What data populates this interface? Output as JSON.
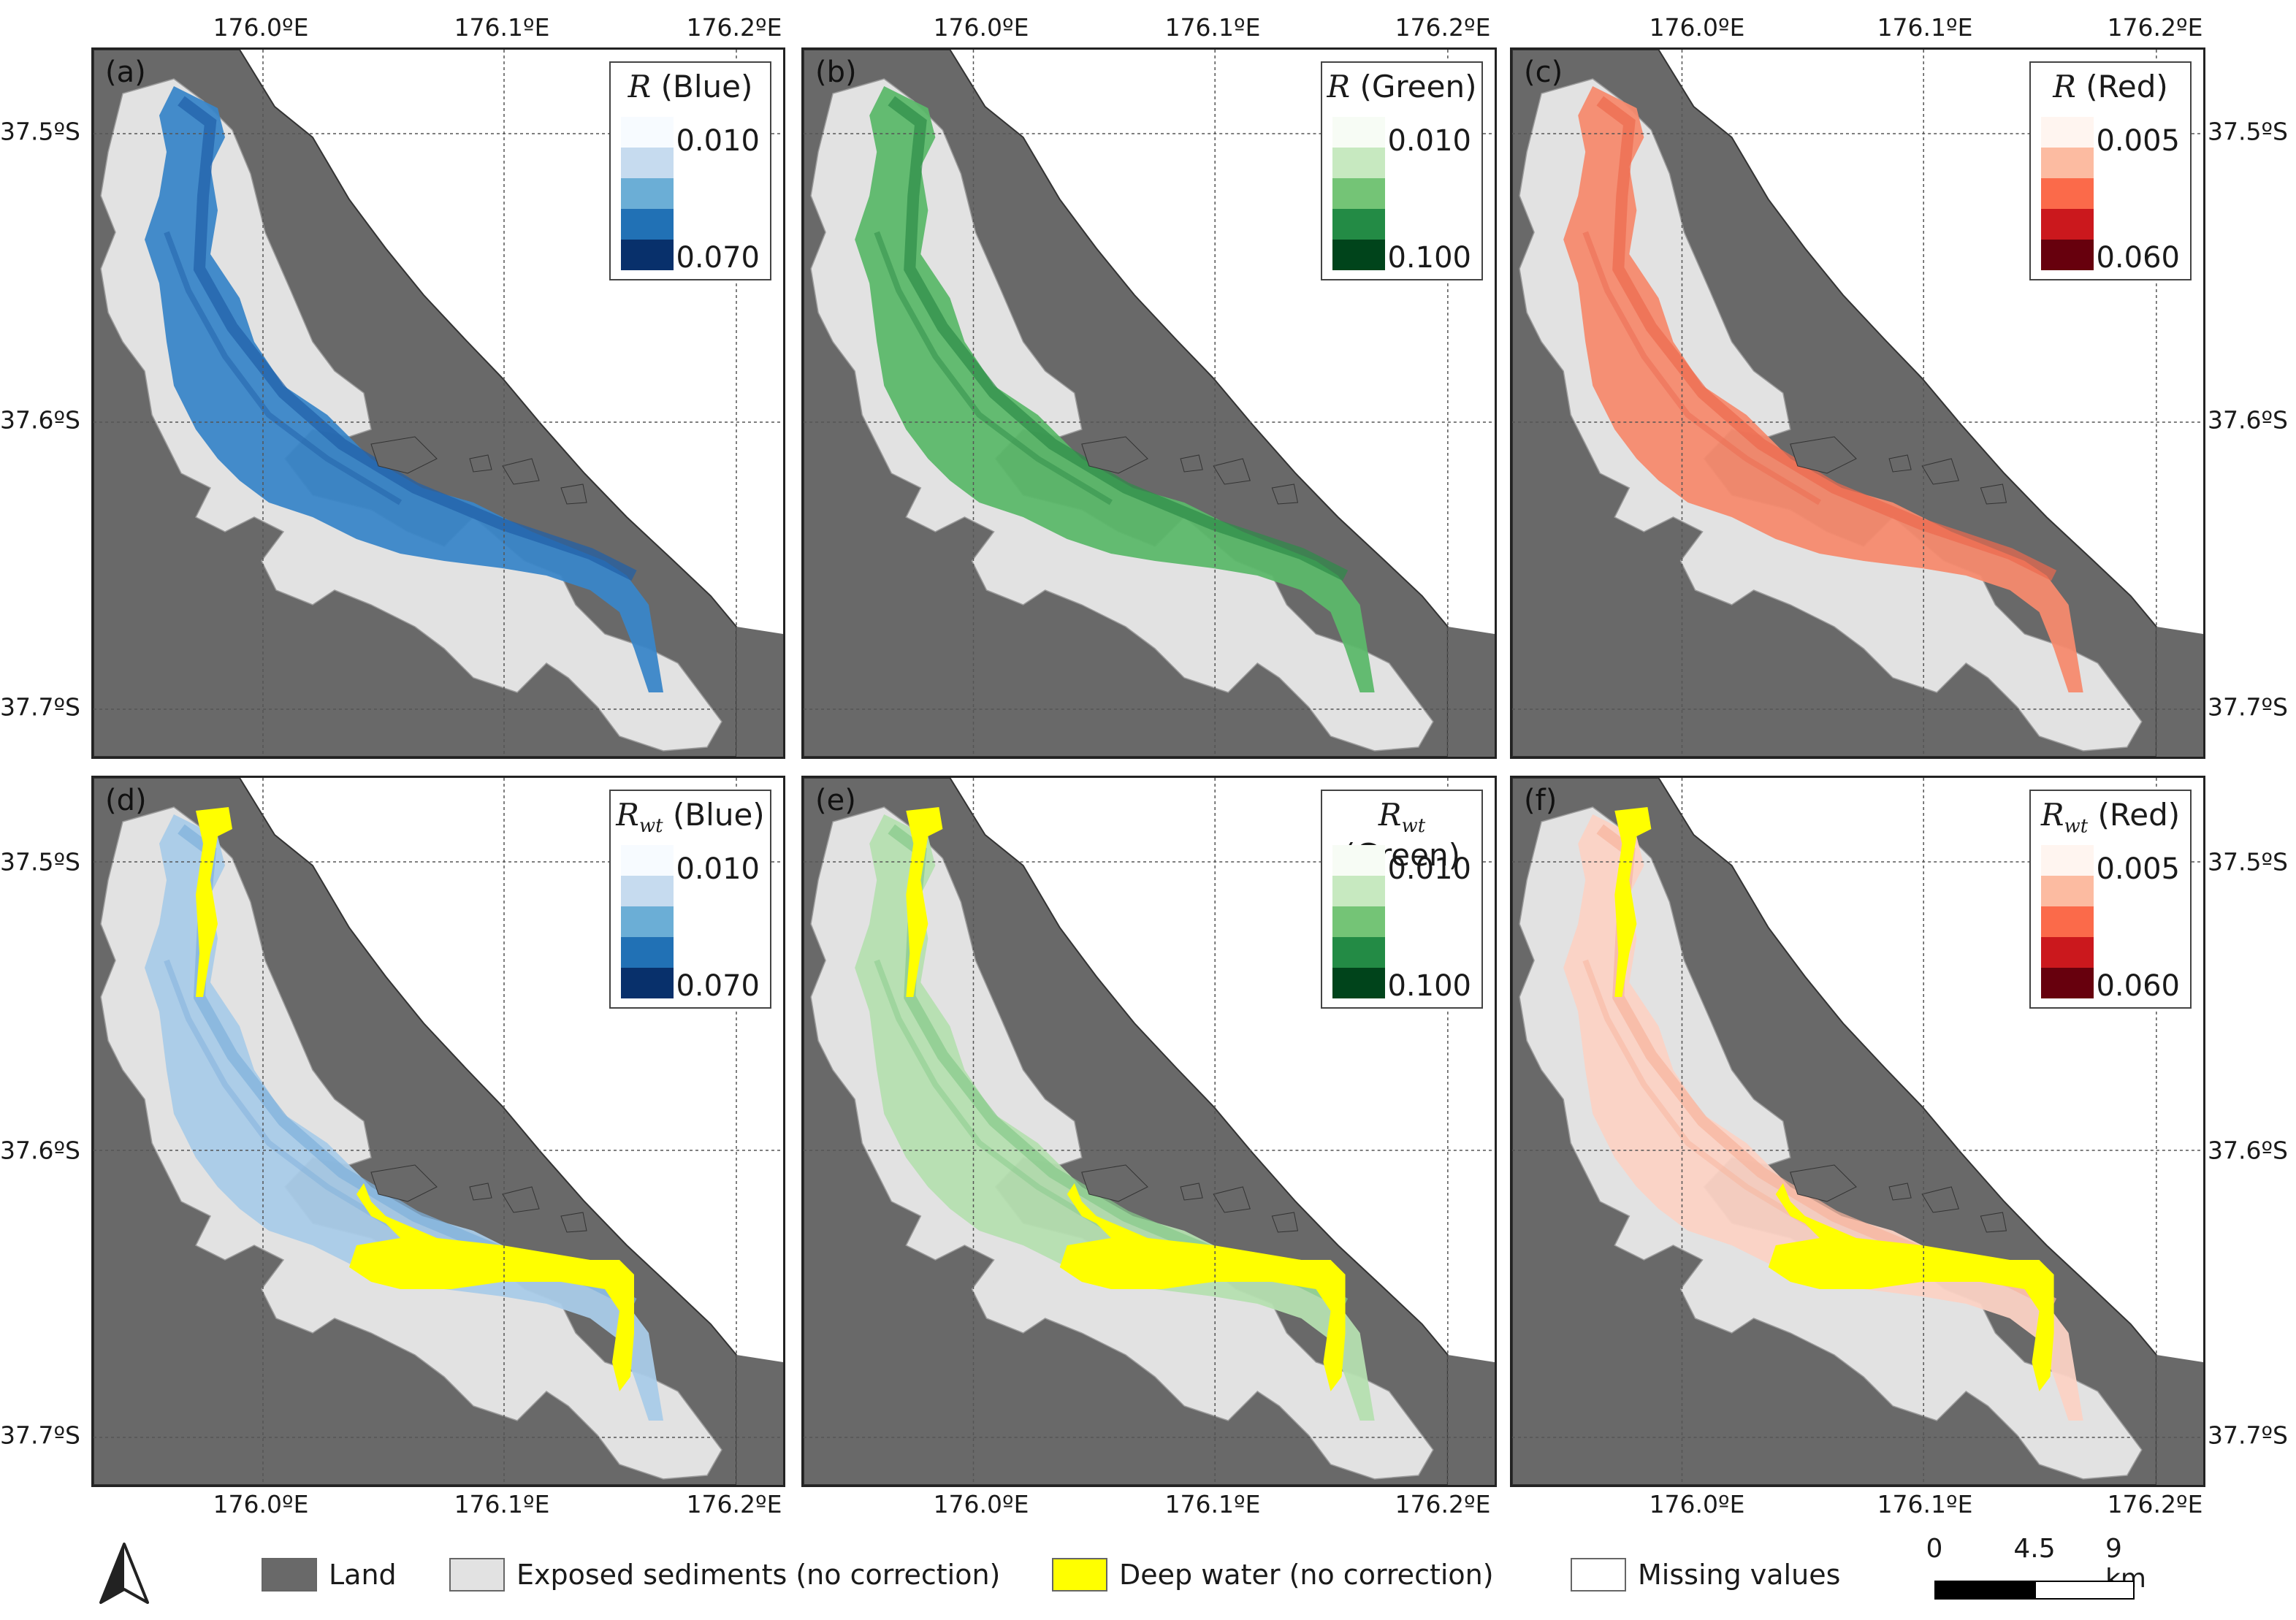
{
  "axes": {
    "lon_labels": [
      "176.0ºE",
      "176.1ºE",
      "176.2ºE"
    ],
    "lat_labels": [
      "37.5ºS",
      "37.6ºS",
      "37.7ºS"
    ]
  },
  "panels": [
    {
      "label": "(a)",
      "var": "R",
      "sub": "",
      "band": "(Blue)",
      "min": "0.010",
      "max": "0.070",
      "mode": "R",
      "colors": [
        "#f7fbff",
        "#c6dbef",
        "#6baed6",
        "#2171b5",
        "#08306b"
      ],
      "water": "#3a86c8",
      "water_dark": "#1f5fa8"
    },
    {
      "label": "(b)",
      "var": "R",
      "sub": "",
      "band": "(Green)",
      "min": "0.010",
      "max": "0.100",
      "mode": "R",
      "colors": [
        "#f7fcf5",
        "#c7e9c0",
        "#74c476",
        "#238b45",
        "#00441b"
      ],
      "water": "#5cb86a",
      "water_dark": "#2e8b48"
    },
    {
      "label": "(c)",
      "var": "R",
      "sub": "",
      "band": "(Red)",
      "min": "0.005",
      "max": "0.060",
      "mode": "R",
      "colors": [
        "#fff5f0",
        "#fcbba1",
        "#fb6a4a",
        "#cb181d",
        "#67000d"
      ],
      "water": "#f58a6e",
      "water_dark": "#ec6a4f"
    },
    {
      "label": "(d)",
      "var": "R",
      "sub": "wt",
      "band": "(Blue)",
      "min": "0.010",
      "max": "0.070",
      "mode": "Rwt",
      "colors": [
        "#f7fbff",
        "#c6dbef",
        "#6baed6",
        "#2171b5",
        "#08306b"
      ],
      "water": "#a9cbe8",
      "water_dark": "#7fb0dc"
    },
    {
      "label": "(e)",
      "var": "R",
      "sub": "wt",
      "band": "(Green)",
      "min": "0.010",
      "max": "0.100",
      "mode": "Rwt",
      "colors": [
        "#f7fcf5",
        "#c7e9c0",
        "#74c476",
        "#238b45",
        "#00441b"
      ],
      "water": "#b5dfb0",
      "water_dark": "#86c98a"
    },
    {
      "label": "(f)",
      "var": "R",
      "sub": "wt",
      "band": "(Red)",
      "min": "0.005",
      "max": "0.060",
      "mode": "Rwt",
      "colors": [
        "#fff5f0",
        "#fcbba1",
        "#fb6a4a",
        "#cb181d",
        "#67000d"
      ],
      "water": "#fbd2c4",
      "water_dark": "#f7b39c"
    }
  ],
  "legend": {
    "land": "Land",
    "sediments": "Exposed sediments (no correction)",
    "deep_water": "Deep water (no correction)",
    "missing": "Missing values"
  },
  "colors": {
    "land": "#696969",
    "sediment": "#e2e2e2",
    "deep_water": "#ffff00",
    "missing": "#ffffff",
    "frame": "#222222"
  },
  "scale": {
    "labels": [
      "0",
      "4.5",
      "9 km"
    ]
  }
}
